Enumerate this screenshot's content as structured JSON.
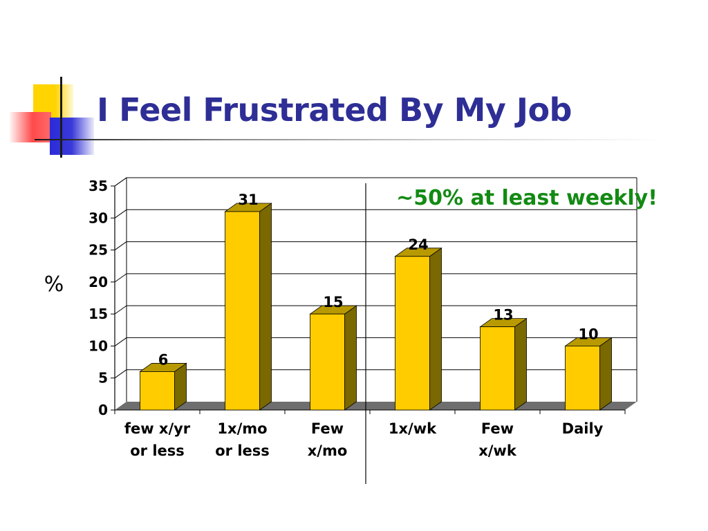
{
  "slide": {
    "title": "I Feel Frustrated By My Job"
  },
  "chart_data": {
    "type": "bar",
    "style": "3d-column",
    "categories": [
      [
        "few x/yr",
        "or less"
      ],
      [
        "1x/mo",
        "or less"
      ],
      [
        "Few",
        "x/mo"
      ],
      [
        "1x/wk"
      ],
      [
        "Few",
        "x/wk"
      ],
      [
        "Daily"
      ]
    ],
    "values": [
      6,
      31,
      15,
      24,
      13,
      10
    ],
    "ylabel": "%",
    "ylim": [
      0,
      35
    ],
    "yticks": [
      0,
      5,
      10,
      15,
      20,
      25,
      30,
      35
    ],
    "grid": true,
    "annotation": {
      "text": "~50% at least weekly!",
      "color": "#138a13",
      "divider_before_category": 3
    },
    "colors": {
      "bar_front": "#ffcc00",
      "bar_side": "#7a6800",
      "bar_top": "#b89a00",
      "floor": "#6e6e6e",
      "title": "#2e2e96"
    }
  }
}
